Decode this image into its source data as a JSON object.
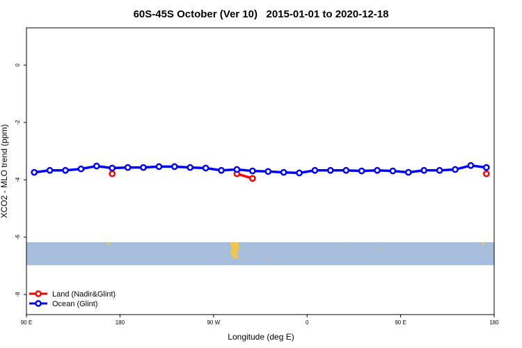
{
  "chart_data": {
    "type": "line",
    "title": "60S-45S October (Ver 10)   2015-01-01 to 2020-12-18",
    "x_label": "Longitude (deg E)",
    "y_label": "XCO2 - MLO trend (ppm)",
    "xlim": [
      90,
      540
    ],
    "xticks": [
      {
        "value": 90,
        "label": "90 E"
      },
      {
        "value": 180,
        "label": "180"
      },
      {
        "value": 270,
        "label": "90 W"
      },
      {
        "value": 360,
        "label": "0"
      },
      {
        "value": 450,
        "label": "90 E"
      },
      {
        "value": 540,
        "label": "180"
      }
    ],
    "ylim": [
      -8.7,
      1.3
    ],
    "yticks": [
      0,
      -2,
      -4,
      -6,
      -8
    ],
    "legend": "bottom-left",
    "series": [
      {
        "name": "Land (Nadir&Glint)",
        "color": "#ff0000",
        "x": [
          172.5,
          292.5,
          307.5,
          532.5
        ],
        "values": [
          -3.79,
          -3.79,
          -3.95,
          -3.79
        ]
      },
      {
        "name": "Ocean (Glint)",
        "color": "#0000ff",
        "x": [
          97.5,
          112.5,
          127.5,
          142.5,
          157.5,
          172.5,
          187.5,
          202.5,
          217.5,
          232.5,
          247.5,
          262.5,
          277.5,
          292.5,
          307.5,
          322.5,
          337.5,
          352.5,
          367.5,
          382.5,
          397.5,
          412.5,
          427.5,
          442.5,
          457.5,
          472.5,
          487.5,
          502.5,
          517.5,
          532.5
        ],
        "values": [
          -3.74,
          -3.67,
          -3.67,
          -3.62,
          -3.52,
          -3.59,
          -3.57,
          -3.57,
          -3.54,
          -3.54,
          -3.57,
          -3.59,
          -3.67,
          -3.64,
          -3.69,
          -3.71,
          -3.74,
          -3.76,
          -3.67,
          -3.67,
          -3.67,
          -3.69,
          -3.67,
          -3.69,
          -3.74,
          -3.67,
          -3.67,
          -3.64,
          -3.5,
          -3.57
        ]
      }
    ]
  }
}
